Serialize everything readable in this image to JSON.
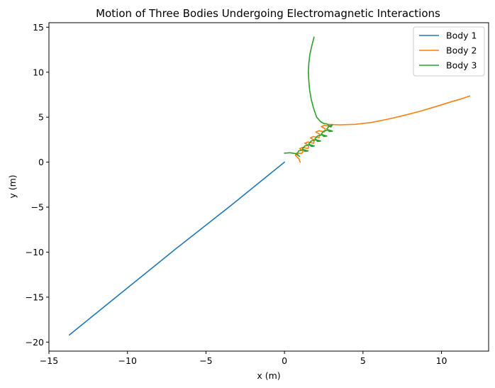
{
  "chart_data": {
    "type": "line",
    "title": "Motion of Three Bodies Undergoing Electromagnetic Interactions",
    "xlabel": "x (m)",
    "ylabel": "y (m)",
    "xlim": [
      -15,
      13
    ],
    "ylim": [
      -21,
      15.5
    ],
    "xticks": [
      -15,
      -10,
      -5,
      0,
      5,
      10
    ],
    "yticks": [
      -20,
      -15,
      -10,
      -5,
      0,
      5,
      10,
      15
    ],
    "grid": false,
    "legend_position": "top-right",
    "series": [
      {
        "name": "Body 1",
        "color": "#1f77b4",
        "points": [
          [
            0,
            0
          ],
          [
            -3.4,
            -4.8
          ],
          [
            -6.9,
            -9.6
          ],
          [
            -10.3,
            -14.4
          ],
          [
            -13.7,
            -19.2
          ]
        ]
      },
      {
        "name": "Body 2",
        "color": "#ff7f0e",
        "points": [
          [
            1.0,
            0.0
          ],
          [
            0.92,
            0.38
          ],
          [
            0.7,
            0.75
          ],
          [
            0.75,
            1.0
          ],
          [
            1.1,
            0.98
          ],
          [
            1.2,
            1.2
          ],
          [
            0.98,
            1.5
          ],
          [
            1.15,
            1.65
          ],
          [
            1.5,
            1.5
          ],
          [
            1.55,
            1.85
          ],
          [
            1.3,
            2.1
          ],
          [
            1.5,
            2.25
          ],
          [
            1.85,
            2.1
          ],
          [
            1.9,
            2.45
          ],
          [
            1.65,
            2.7
          ],
          [
            1.85,
            2.85
          ],
          [
            2.2,
            2.7
          ],
          [
            2.25,
            3.1
          ],
          [
            2.0,
            3.35
          ],
          [
            2.2,
            3.5
          ],
          [
            2.55,
            3.35
          ],
          [
            2.6,
            3.7
          ],
          [
            2.35,
            3.95
          ],
          [
            2.55,
            4.1
          ],
          [
            2.9,
            3.95
          ],
          [
            2.75,
            4.2
          ],
          [
            3.5,
            4.15
          ],
          [
            4.5,
            4.2
          ],
          [
            5.5,
            4.4
          ],
          [
            6.5,
            4.75
          ],
          [
            7.5,
            5.15
          ],
          [
            8.5,
            5.6
          ],
          [
            9.5,
            6.1
          ],
          [
            10.5,
            6.65
          ],
          [
            11.2,
            7.0
          ],
          [
            11.8,
            7.35
          ]
        ]
      },
      {
        "name": "Body 3",
        "color": "#2ca02c",
        "points": [
          [
            0.0,
            1.0
          ],
          [
            0.35,
            1.05
          ],
          [
            0.7,
            0.95
          ],
          [
            0.95,
            0.65
          ],
          [
            0.8,
            0.9
          ],
          [
            0.9,
            1.25
          ],
          [
            1.2,
            1.4
          ],
          [
            1.5,
            1.25
          ],
          [
            1.3,
            1.2
          ],
          [
            1.15,
            1.5
          ],
          [
            1.3,
            1.8
          ],
          [
            1.6,
            1.95
          ],
          [
            1.9,
            1.8
          ],
          [
            1.7,
            1.75
          ],
          [
            1.55,
            2.05
          ],
          [
            1.7,
            2.35
          ],
          [
            2.0,
            2.5
          ],
          [
            2.3,
            2.35
          ],
          [
            2.1,
            2.3
          ],
          [
            1.95,
            2.6
          ],
          [
            2.1,
            2.9
          ],
          [
            2.4,
            3.05
          ],
          [
            2.7,
            2.9
          ],
          [
            2.5,
            2.85
          ],
          [
            2.35,
            3.15
          ],
          [
            2.5,
            3.45
          ],
          [
            2.8,
            3.6
          ],
          [
            3.05,
            3.45
          ],
          [
            2.85,
            3.4
          ],
          [
            2.7,
            3.7
          ],
          [
            2.85,
            4.0
          ],
          [
            3.05,
            4.15
          ],
          [
            2.95,
            3.9
          ],
          [
            2.7,
            4.25
          ],
          [
            2.5,
            4.3
          ],
          [
            2.3,
            4.5
          ],
          [
            2.05,
            5.0
          ],
          [
            1.85,
            6.0
          ],
          [
            1.7,
            7.0
          ],
          [
            1.6,
            8.0
          ],
          [
            1.55,
            9.0
          ],
          [
            1.52,
            10.0
          ],
          [
            1.55,
            11.0
          ],
          [
            1.62,
            12.0
          ],
          [
            1.75,
            13.0
          ],
          [
            1.88,
            13.9
          ]
        ]
      }
    ]
  }
}
